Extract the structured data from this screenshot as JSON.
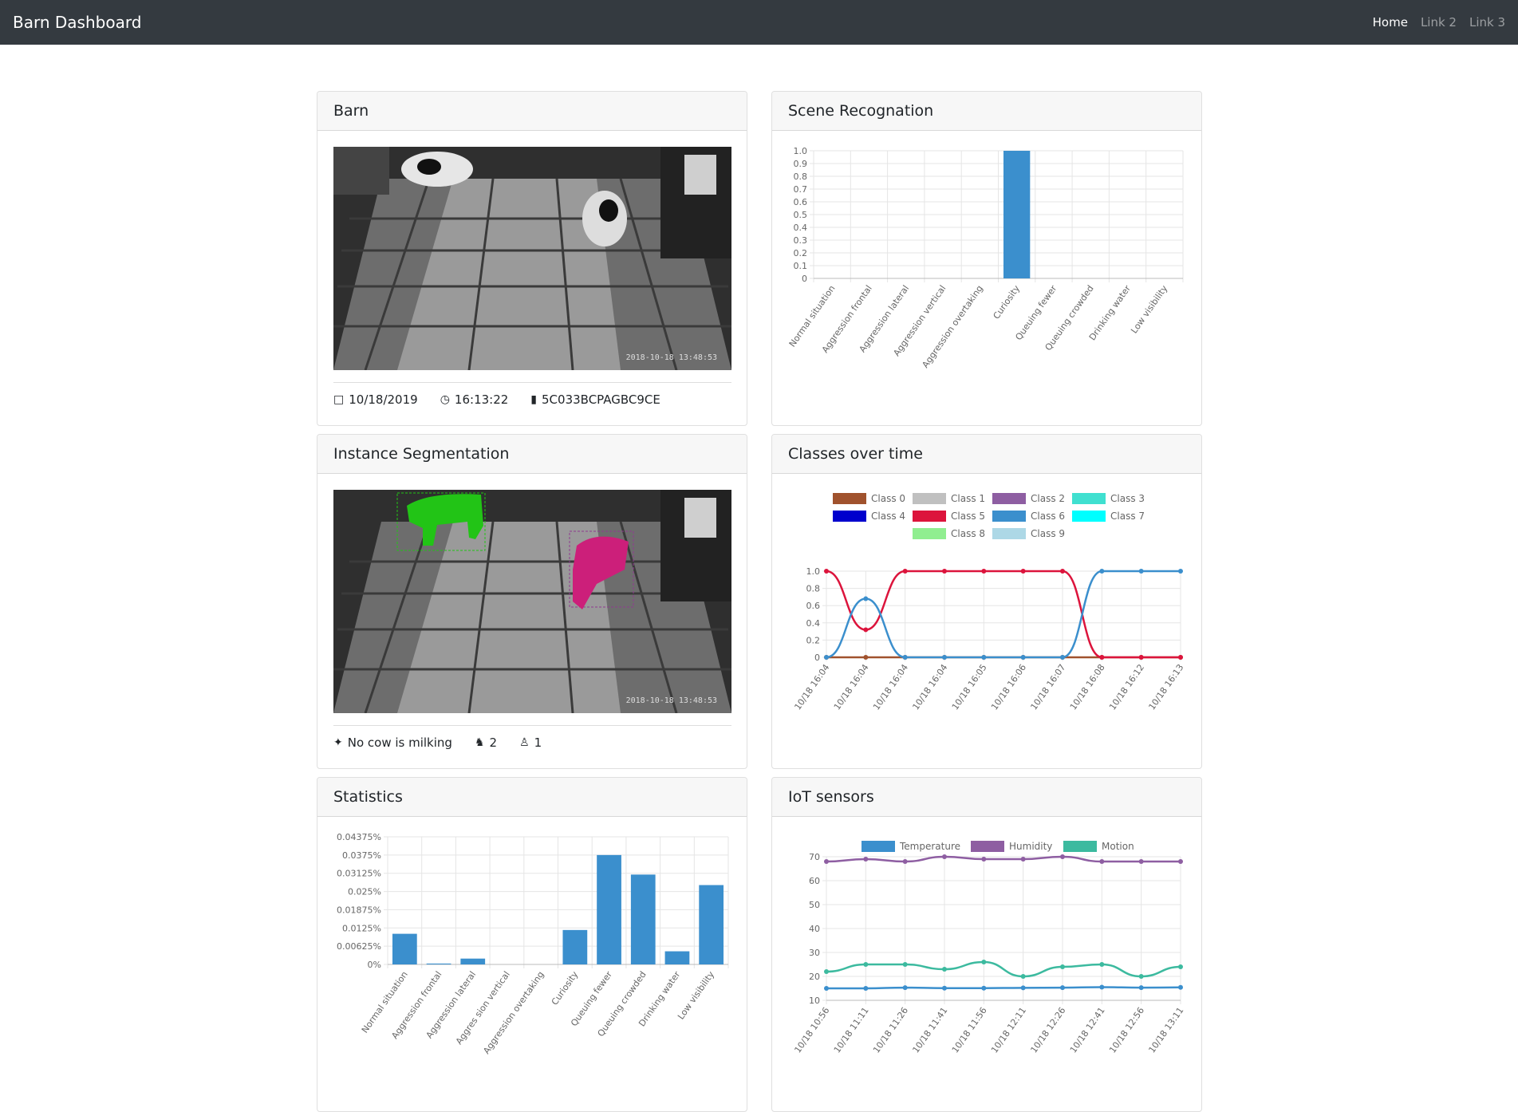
{
  "navbar": {
    "brand": "Barn Dashboard",
    "links": [
      "Home",
      "Link 2",
      "Link 3"
    ]
  },
  "barn": {
    "title": "Barn",
    "date": "10/18/2019",
    "time": "16:13:22",
    "camera_id": "5C033BCPAGBC9CE",
    "cam_stamp": "2018-10-18 13:48:53",
    "icons": {
      "date": "calendar-icon",
      "time": "clock-icon",
      "camera": "video-camera-icon"
    }
  },
  "segmentation": {
    "title": "Instance Segmentation",
    "milking_status": "No cow is milking",
    "cow_count": "2",
    "person_count": "1",
    "cam_stamp": "2018-10-18 13:48:53",
    "icons": {
      "milking": "milk-bottle-icon",
      "cow": "cow-icon",
      "person": "person-icon"
    },
    "mask_colors": [
      "#22c416",
      "#cc1f7a"
    ]
  },
  "scene": {
    "title": "Scene Recognation"
  },
  "classes_time": {
    "title": "Classes over time"
  },
  "statistics": {
    "title": "Statistics"
  },
  "iot": {
    "title": "IoT sensors"
  },
  "chart_data": [
    {
      "id": "scene",
      "type": "bar",
      "categories": [
        "Normal situation",
        "Aggression frontal",
        "Aggression lateral",
        "Aggression vertical",
        "Aggression overtaking",
        "Curiosity",
        "Queuing fewer",
        "Queuing crowded",
        "Drinking water",
        "Low visibility"
      ],
      "values": [
        0,
        0,
        0,
        0,
        0,
        1.0,
        0,
        0,
        0,
        0
      ],
      "ylim": [
        0,
        1.0
      ],
      "yticks": [
        "0",
        "0.1",
        "0.2",
        "0.3",
        "0.4",
        "0.5",
        "0.6",
        "0.7",
        "0.8",
        "0.9",
        "1.0"
      ],
      "color": "#3b8fcd"
    },
    {
      "id": "classes",
      "type": "line",
      "x": [
        "10/18 16:04",
        "10/18 16:04",
        "10/18 16:04",
        "10/18 16:04",
        "10/18 16:05",
        "10/18 16:06",
        "10/18 16:07",
        "10/18 16:08",
        "10/18 16:12",
        "10/18 16:13"
      ],
      "ylim": [
        0,
        1.0
      ],
      "yticks": [
        "0",
        "0.2",
        "0.4",
        "0.6",
        "0.8",
        "1.0"
      ],
      "legend": [
        {
          "name": "Class 0",
          "color": "#a0522d"
        },
        {
          "name": "Class 1",
          "color": "#c0c0c0"
        },
        {
          "name": "Class 2",
          "color": "#8e5ea2"
        },
        {
          "name": "Class 3",
          "color": "#40e0d0"
        },
        {
          "name": "Class 4",
          "color": "#0000cd"
        },
        {
          "name": "Class 5",
          "color": "#dc143c"
        },
        {
          "name": "Class 6",
          "color": "#3b8fcd"
        },
        {
          "name": "Class 7",
          "color": "#00ffff"
        },
        {
          "name": "Class 8",
          "color": "#90ee90"
        },
        {
          "name": "Class 9",
          "color": "#add8e6"
        }
      ],
      "series": [
        {
          "name": "Class 0",
          "values": [
            0,
            0,
            0,
            0,
            0,
            0,
            0,
            0,
            0,
            0
          ],
          "color": "#a0522d"
        },
        {
          "name": "Class 5",
          "values": [
            1,
            0.32,
            1,
            1,
            1,
            1,
            1,
            0,
            0,
            0
          ],
          "color": "#dc143c"
        },
        {
          "name": "Class 6",
          "values": [
            0,
            0.68,
            0,
            0,
            0,
            0,
            0,
            1,
            1,
            1
          ],
          "color": "#3b8fcd"
        }
      ]
    },
    {
      "id": "stats",
      "type": "bar",
      "categories": [
        "Normal situation",
        "Aggression frontal",
        "Aggression lateral",
        "Aggres sion vertical",
        "Aggression overtaking",
        "Curiosity",
        "Queuing fewer",
        "Queuing crowded",
        "Drinking water",
        "Low visibility"
      ],
      "values": [
        0.0105,
        0.0003,
        0.002,
        0,
        0,
        0.0118,
        0.0375,
        0.0308,
        0.0045,
        0.0272
      ],
      "ylim": [
        0,
        0.04375
      ],
      "yticks": [
        "0%",
        "0.00625%",
        "0.0125%",
        "0.01875%",
        "0.025%",
        "0.03125%",
        "0.0375%",
        "0.04375%"
      ],
      "color": "#3b8fcd"
    },
    {
      "id": "iot",
      "type": "line",
      "x": [
        "10/18 10:56",
        "10/18 11:11",
        "10/18 11:26",
        "10/18 11:41",
        "10/18 11:56",
        "10/18 12:11",
        "10/18 12:26",
        "10/18 12:41",
        "10/18 12:56",
        "10/18 13:11"
      ],
      "ylim": [
        10,
        70
      ],
      "yticks": [
        "10",
        "20",
        "30",
        "40",
        "50",
        "60",
        "70"
      ],
      "series": [
        {
          "name": "Temperature",
          "values": [
            15,
            15,
            15.3,
            15.1,
            15.1,
            15.2,
            15.3,
            15.5,
            15.3,
            15.4
          ],
          "color": "#3b8fcd"
        },
        {
          "name": "Humidity",
          "values": [
            68,
            69,
            68,
            70,
            69,
            69,
            70,
            68,
            68,
            68
          ],
          "color": "#8e5ea2"
        },
        {
          "name": "Motion",
          "values": [
            22,
            25,
            25,
            23,
            26,
            20,
            24,
            25,
            20,
            24
          ],
          "color": "#3cba9f"
        }
      ]
    }
  ]
}
